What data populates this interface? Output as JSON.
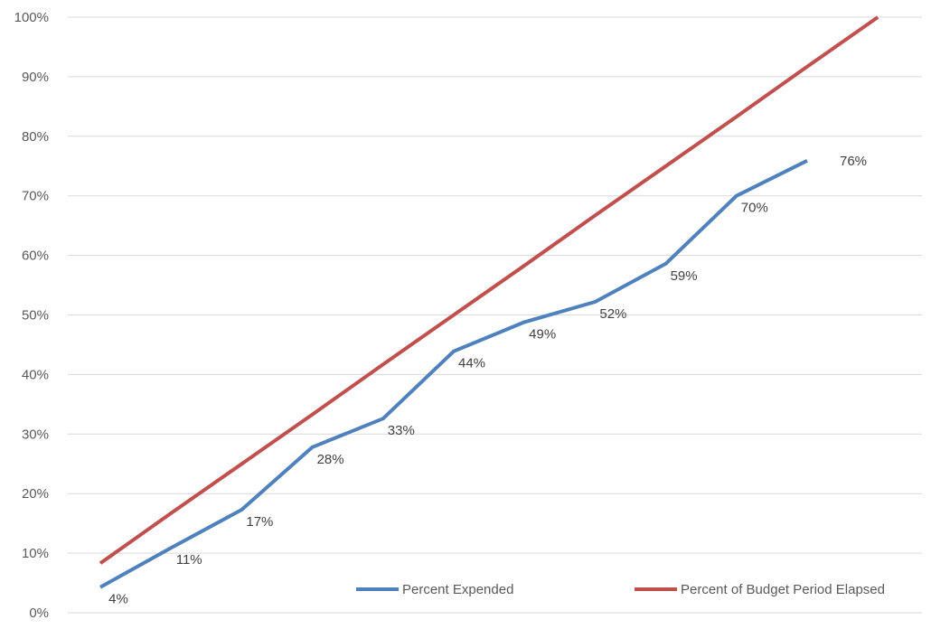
{
  "chart_data": {
    "type": "line",
    "title": "",
    "xlabel": "",
    "ylabel": "",
    "ylim": [
      0,
      100
    ],
    "y_ticks": [
      "0%",
      "10%",
      "20%",
      "30%",
      "40%",
      "50%",
      "60%",
      "70%",
      "80%",
      "90%",
      "100%"
    ],
    "x_index": [
      1,
      2,
      3,
      4,
      5,
      6,
      7,
      8,
      9,
      10,
      11,
      12
    ],
    "grid": true,
    "legend_position": "bottom-right",
    "series": [
      {
        "name": "Percent Expended",
        "color": "#4f81bd",
        "values": [
          4.3,
          10.9,
          17.3,
          27.8,
          32.6,
          43.9,
          48.8,
          52.2,
          58.6,
          70.0,
          75.9
        ],
        "labels": [
          "4%",
          "11%",
          "17%",
          "28%",
          "33%",
          "44%",
          "49%",
          "52%",
          "59%",
          "70%",
          "76%"
        ]
      },
      {
        "name": "Percent of Budget Period Elapsed",
        "color": "#c0504d",
        "values": [
          8.3,
          16.7,
          25.0,
          33.3,
          41.7,
          50.0,
          58.3,
          66.7,
          75.0,
          83.3,
          91.7,
          100.0
        ]
      }
    ]
  }
}
